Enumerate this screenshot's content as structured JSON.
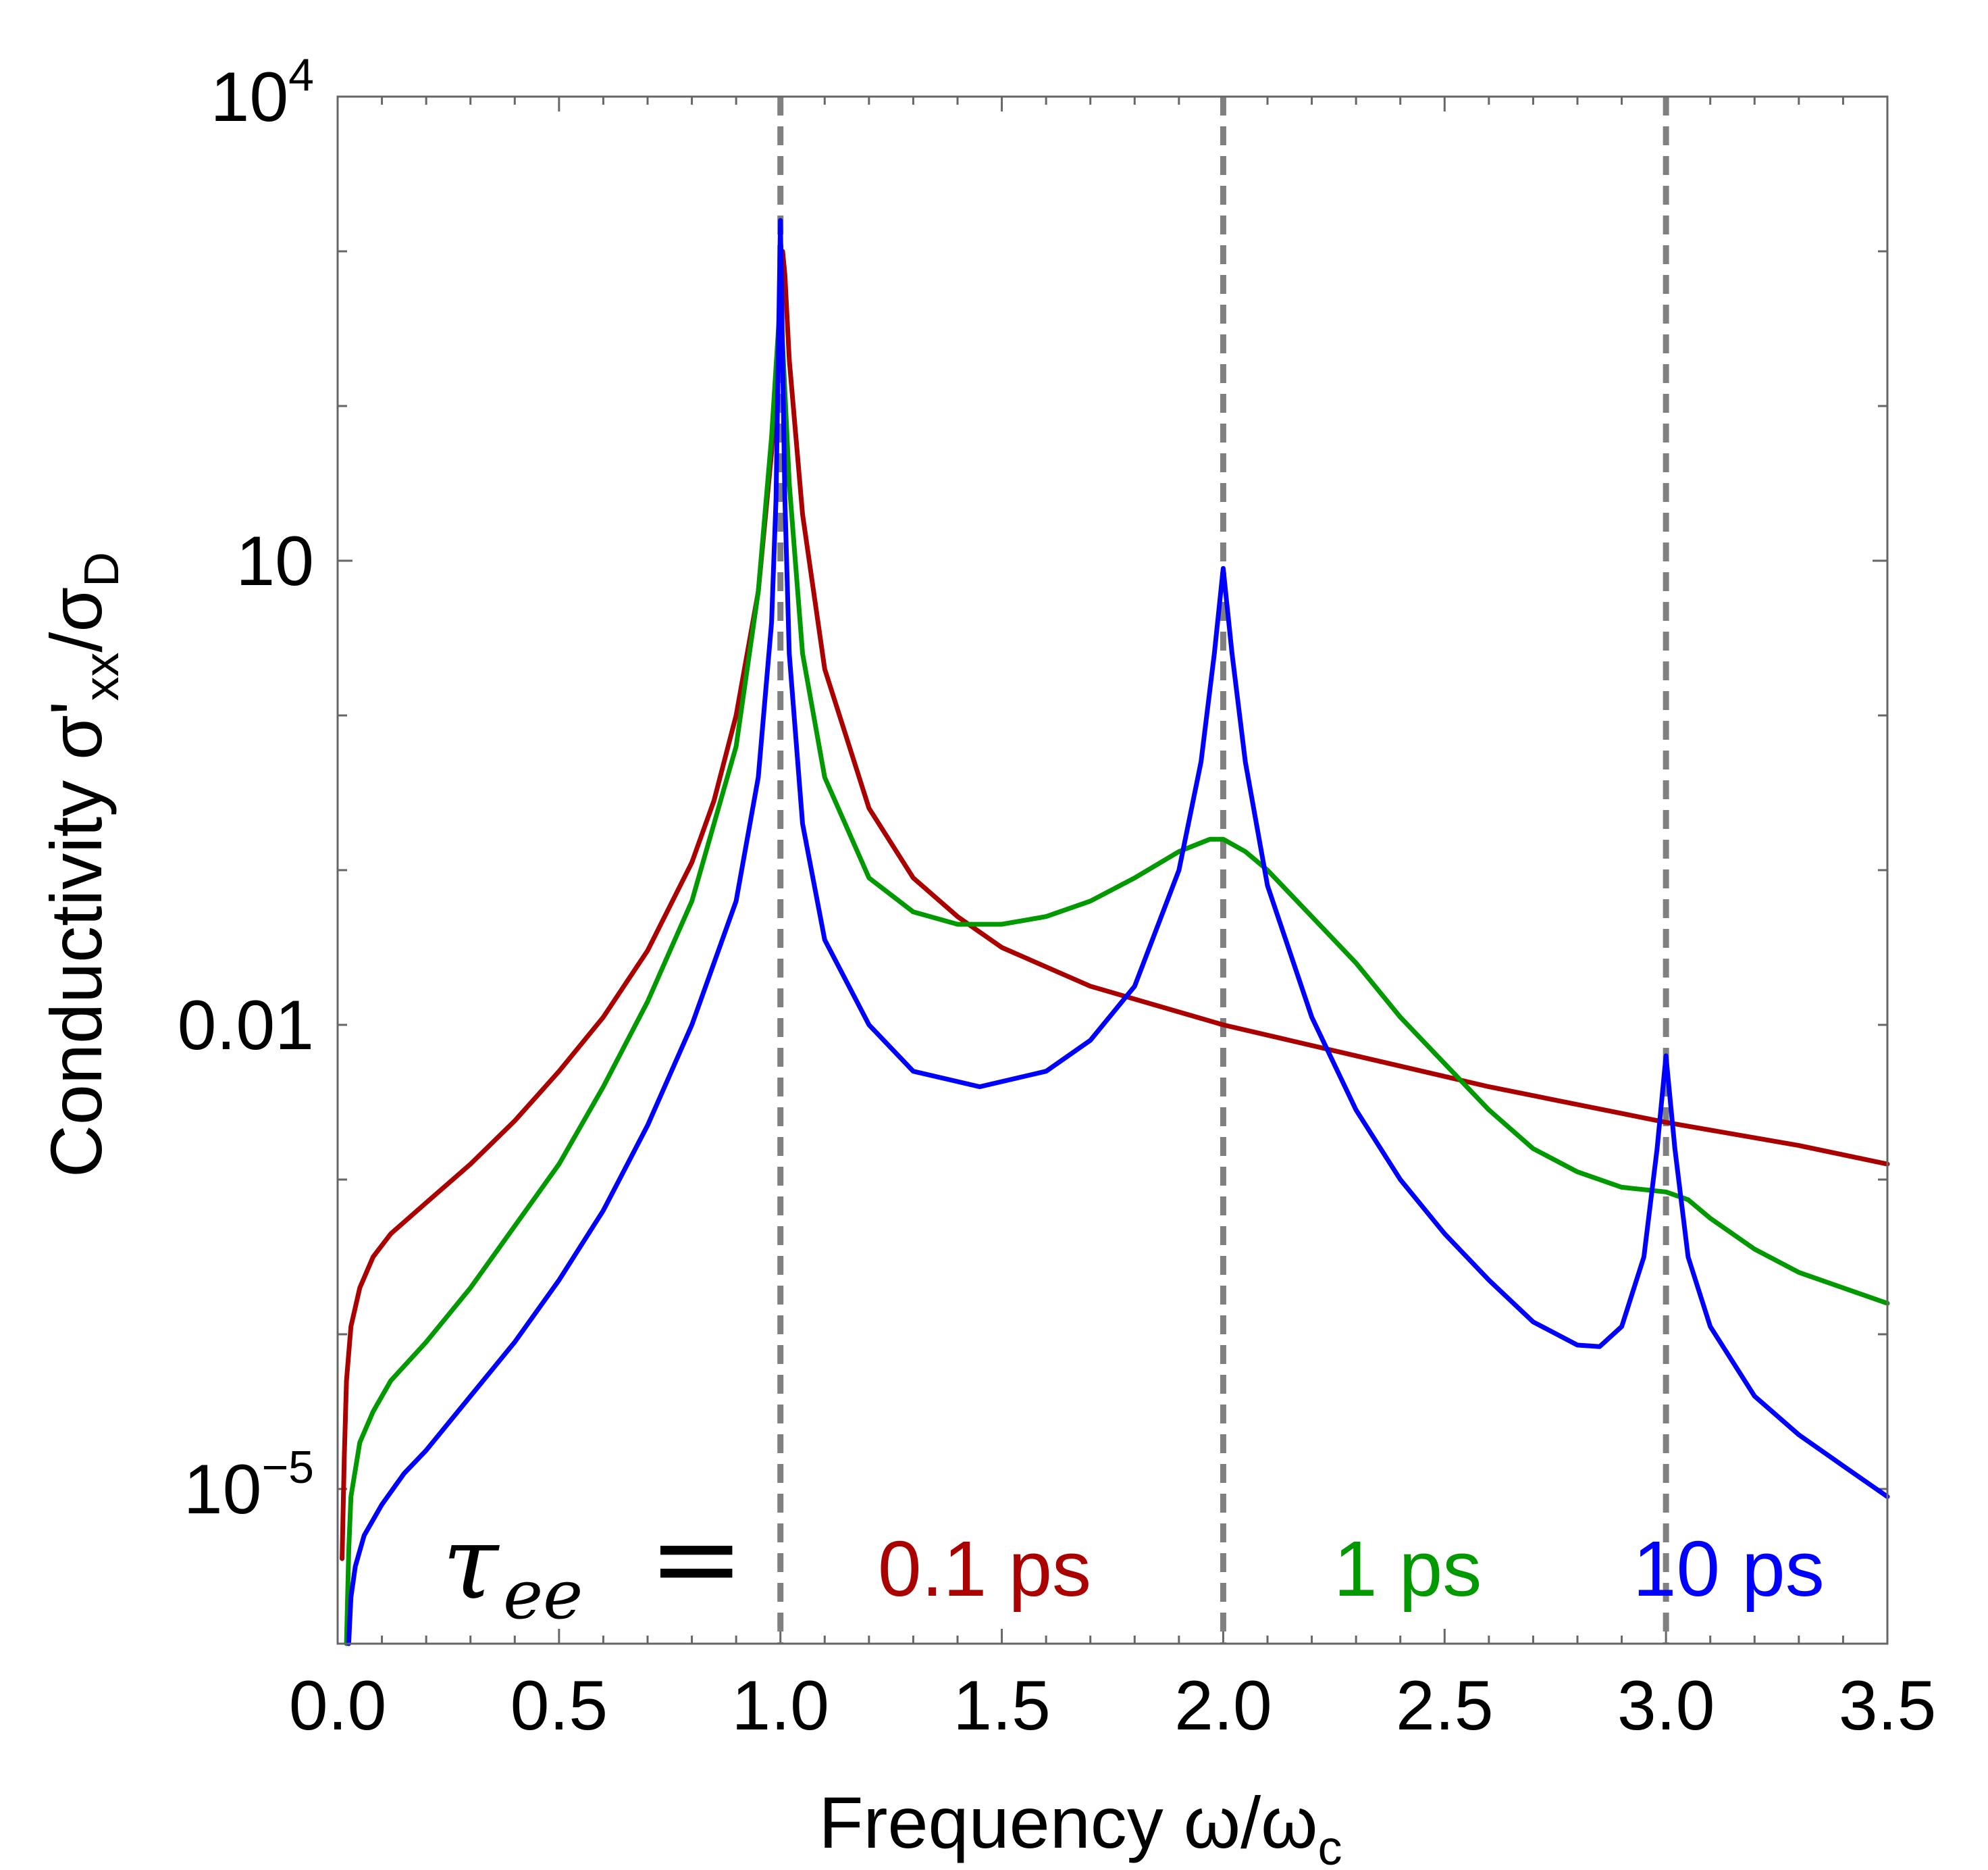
{
  "chart_data": {
    "type": "line",
    "title": "",
    "xlabel": "Frequency ω/ω",
    "xlabel_sub": "c",
    "ylabel": "Conductivity σ'",
    "ylabel_sub1": "xx",
    "ylabel_mid": "/σ",
    "ylabel_sub2": "D",
    "xlim": [
      0.0,
      3.5
    ],
    "ylim_log10": [
      -6.0,
      4.0
    ],
    "y_scale": "log",
    "x_ticks": [
      "0.0",
      "0.5",
      "1.0",
      "1.5",
      "2.0",
      "2.5",
      "3.0",
      "3.5"
    ],
    "y_ticks": [
      {
        "base": "10",
        "exp": "4"
      },
      {
        "base": "10",
        "exp": ""
      },
      {
        "base": "0.01",
        "exp": ""
      },
      {
        "base": "10",
        "exp": "−5"
      }
    ],
    "vlines": [
      1.0,
      2.0,
      3.0
    ],
    "legend": {
      "prefix_symbol": "τ",
      "prefix_sub": "ee",
      "prefix_eq": "=",
      "entries": [
        "0.1 ps",
        "1 ps",
        "10 ps"
      ]
    },
    "series": [
      {
        "name": "0.1 ps",
        "color": "#aa0000",
        "x": [
          0.01,
          0.015,
          0.02,
          0.03,
          0.05,
          0.08,
          0.12,
          0.2,
          0.3,
          0.4,
          0.5,
          0.6,
          0.7,
          0.8,
          0.85,
          0.9,
          0.95,
          0.98,
          1.0,
          1.005,
          1.01,
          1.02,
          1.05,
          1.1,
          1.2,
          1.3,
          1.4,
          1.5,
          1.7,
          2.0,
          2.3,
          2.6,
          3.0,
          3.3,
          3.5
        ],
        "log10": [
          -5.45,
          -4.8,
          -4.3,
          -3.95,
          -3.7,
          -3.5,
          -3.35,
          -3.15,
          -2.9,
          -2.62,
          -2.3,
          -1.95,
          -1.52,
          -0.95,
          -0.55,
          0.0,
          0.8,
          1.7,
          2.6,
          3.0,
          2.85,
          2.3,
          1.3,
          0.3,
          -0.6,
          -1.05,
          -1.3,
          -1.5,
          -1.75,
          -2.0,
          -2.2,
          -2.4,
          -2.63,
          -2.78,
          -2.9
        ]
      },
      {
        "name": "1 ps",
        "color": "#009900",
        "x": [
          0.02,
          0.025,
          0.03,
          0.05,
          0.08,
          0.12,
          0.2,
          0.3,
          0.4,
          0.5,
          0.6,
          0.7,
          0.8,
          0.9,
          0.95,
          0.98,
          1.0,
          1.02,
          1.05,
          1.1,
          1.2,
          1.3,
          1.4,
          1.5,
          1.6,
          1.7,
          1.8,
          1.9,
          1.97,
          2.0,
          2.05,
          2.1,
          2.2,
          2.3,
          2.4,
          2.5,
          2.6,
          2.7,
          2.8,
          2.9,
          3.0,
          3.05,
          3.1,
          3.2,
          3.3,
          3.4,
          3.5
        ],
        "log10": [
          -6.0,
          -5.4,
          -5.05,
          -4.7,
          -4.5,
          -4.3,
          -4.05,
          -3.7,
          -3.3,
          -2.9,
          -2.4,
          -1.85,
          -1.2,
          -0.2,
          0.8,
          1.8,
          2.7,
          1.5,
          0.4,
          -0.4,
          -1.05,
          -1.27,
          -1.35,
          -1.35,
          -1.3,
          -1.2,
          -1.05,
          -0.88,
          -0.8,
          -0.8,
          -0.88,
          -1.0,
          -1.3,
          -1.6,
          -1.95,
          -2.25,
          -2.55,
          -2.8,
          -2.95,
          -3.05,
          -3.08,
          -3.13,
          -3.25,
          -3.45,
          -3.6,
          -3.7,
          -3.8
        ]
      },
      {
        "name": "10 ps",
        "color": "#0000ff",
        "x": [
          0.025,
          0.03,
          0.04,
          0.06,
          0.1,
          0.15,
          0.2,
          0.3,
          0.4,
          0.5,
          0.6,
          0.7,
          0.8,
          0.9,
          0.95,
          0.98,
          0.99,
          1.0,
          1.01,
          1.02,
          1.05,
          1.1,
          1.2,
          1.3,
          1.45,
          1.6,
          1.7,
          1.8,
          1.9,
          1.95,
          1.98,
          2.0,
          2.02,
          2.05,
          2.1,
          2.2,
          2.3,
          2.4,
          2.5,
          2.6,
          2.7,
          2.8,
          2.85,
          2.9,
          2.95,
          2.98,
          3.0,
          3.02,
          3.05,
          3.1,
          3.2,
          3.3,
          3.4,
          3.5
        ],
        "log10": [
          -6.0,
          -5.7,
          -5.5,
          -5.3,
          -5.1,
          -4.9,
          -4.75,
          -4.4,
          -4.05,
          -3.65,
          -3.2,
          -2.65,
          -2.0,
          -1.2,
          -0.4,
          0.6,
          1.4,
          3.2,
          1.4,
          0.4,
          -0.7,
          -1.45,
          -2.0,
          -2.3,
          -2.4,
          -2.3,
          -2.1,
          -1.75,
          -1.0,
          -0.3,
          0.4,
          0.95,
          0.4,
          -0.3,
          -1.1,
          -1.95,
          -2.55,
          -3.0,
          -3.35,
          -3.65,
          -3.92,
          -4.07,
          -4.08,
          -3.95,
          -3.5,
          -2.8,
          -2.2,
          -2.8,
          -3.5,
          -3.95,
          -4.4,
          -4.65,
          -4.85,
          -5.05
        ]
      }
    ]
  }
}
